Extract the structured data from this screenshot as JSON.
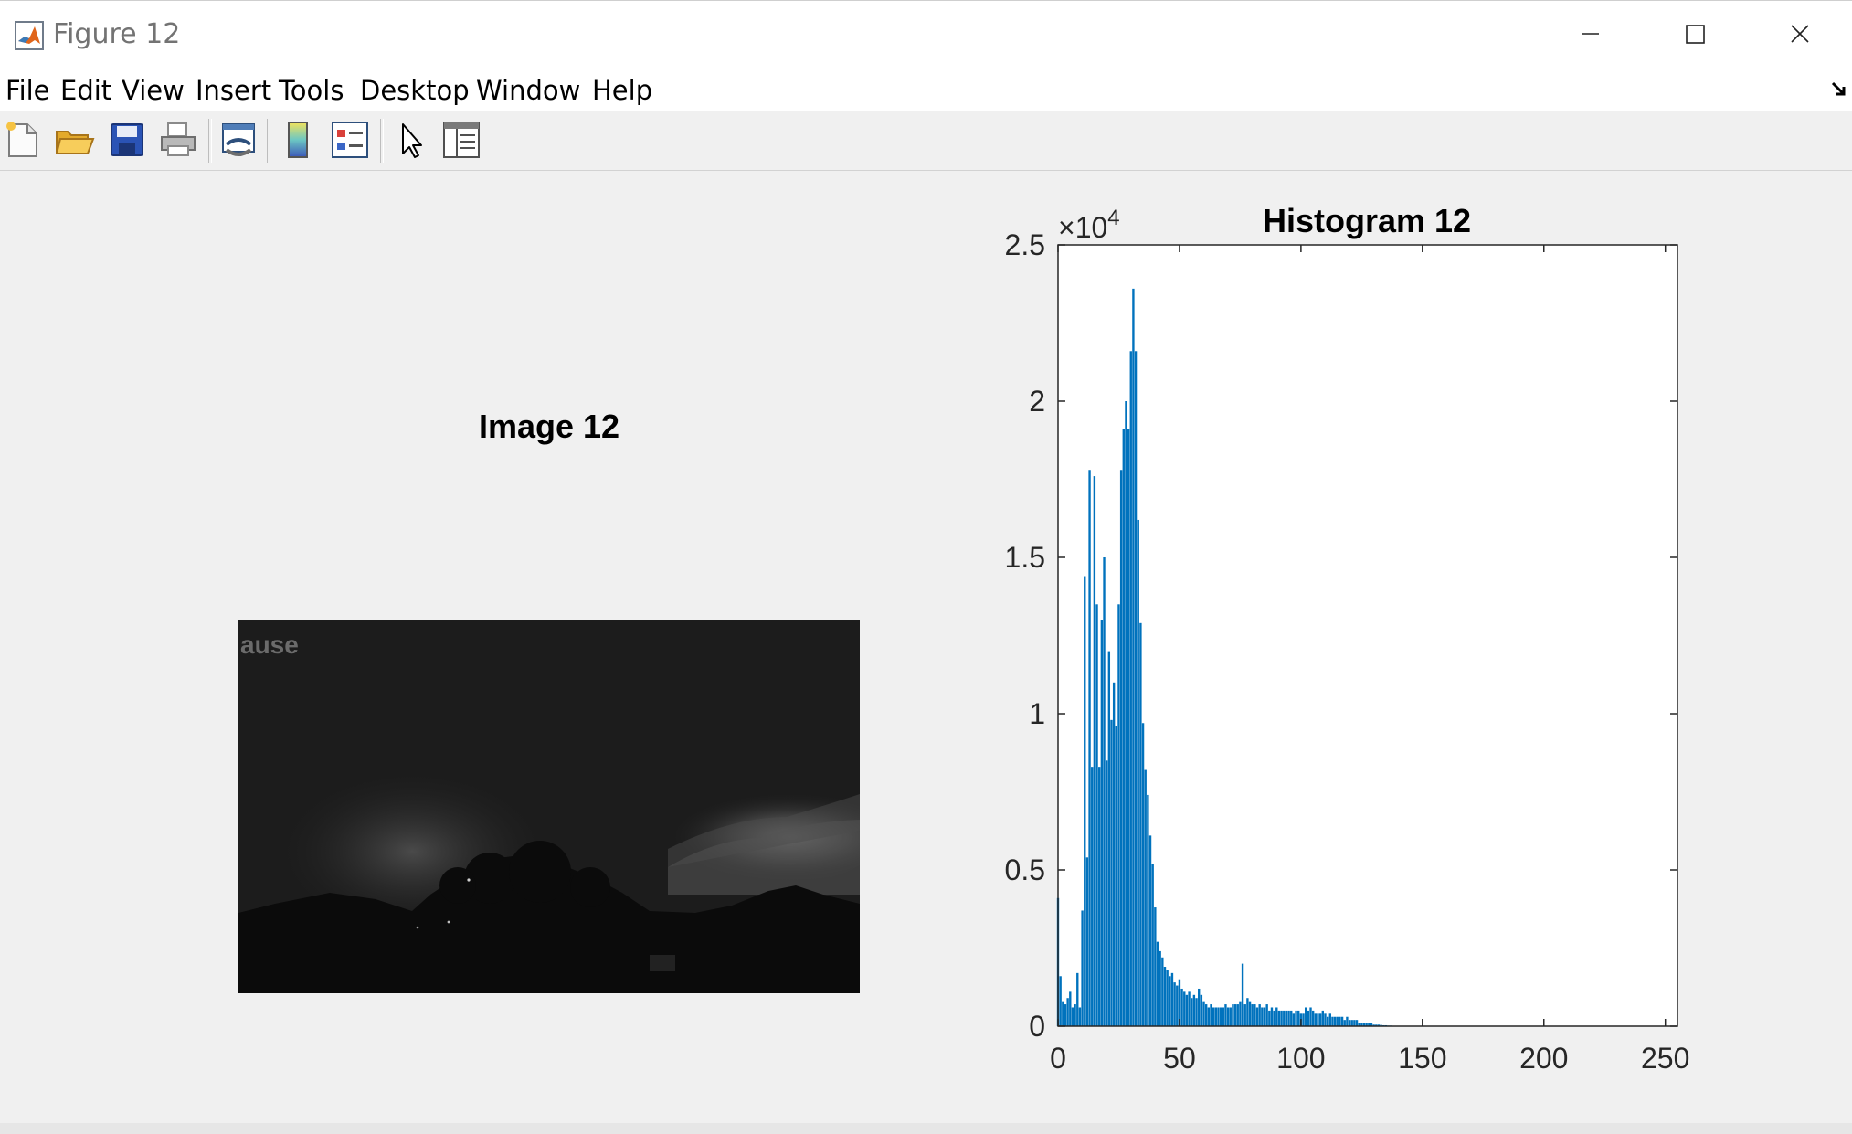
{
  "window": {
    "title": "Figure 12",
    "controls": {
      "minimize": "minimize-icon",
      "maximize": "maximize-icon",
      "close": "close-icon"
    }
  },
  "menu": [
    "File",
    "Edit",
    "View",
    "Insert",
    "Tools",
    "Desktop",
    "Window",
    "Help"
  ],
  "toolbar": {
    "buttons": [
      "new-figure-icon",
      "open-file-icon",
      "save-icon",
      "print-icon",
      "link-plot-icon",
      "insert-colorbar-icon",
      "insert-legend-icon",
      "edit-plot-icon",
      "property-inspector-icon"
    ]
  },
  "image_axes": {
    "title": "Image 12",
    "overlay_text": "ause"
  },
  "chart_data": {
    "type": "bar",
    "title": "Histogram 12",
    "exponent_label": "×10",
    "exponent_power": "4",
    "xlim": [
      0,
      255
    ],
    "ylim": [
      0,
      25000
    ],
    "xticks": [
      "0",
      "50",
      "100",
      "150",
      "200",
      "250"
    ],
    "yticks": [
      "0",
      "0.5",
      "1",
      "1.5",
      "2",
      "2.5"
    ],
    "bar_color": "#0072bd",
    "values": [
      4100,
      1600,
      800,
      700,
      900,
      1100,
      600,
      700,
      1700,
      600,
      3700,
      14400,
      5400,
      17800,
      8300,
      17600,
      13500,
      8300,
      13000,
      15000,
      8500,
      12000,
      9800,
      11000,
      9600,
      13500,
      17800,
      19100,
      20000,
      19100,
      21600,
      23600,
      21600,
      16200,
      12900,
      9700,
      8200,
      7400,
      6100,
      5200,
      3800,
      2700,
      2400,
      2200,
      1900,
      1800,
      1600,
      1700,
      1400,
      1300,
      1500,
      1200,
      1100,
      1000,
      1100,
      900,
      1000,
      900,
      1200,
      1000,
      800,
      700,
      600,
      700,
      600,
      600,
      600,
      600,
      600,
      700,
      600,
      600,
      700,
      700,
      700,
      800,
      2000,
      700,
      900,
      800,
      700,
      700,
      600,
      700,
      600,
      600,
      700,
      500,
      600,
      500,
      600,
      500,
      500,
      500,
      500,
      500,
      500,
      400,
      500,
      500,
      400,
      400,
      600,
      500,
      600,
      500,
      400,
      400,
      400,
      500,
      400,
      300,
      400,
      300,
      300,
      300,
      300,
      300,
      200,
      300,
      200,
      200,
      200,
      200,
      100,
      100,
      100,
      100,
      100,
      100,
      50,
      50,
      50,
      40,
      30,
      30,
      20,
      20,
      10,
      10,
      10,
      5,
      5,
      5,
      0,
      0,
      0,
      0,
      0,
      0,
      0,
      0,
      0,
      0,
      0,
      0,
      0,
      0,
      0,
      0,
      0,
      0,
      0,
      0,
      0,
      0,
      0,
      0,
      0,
      0,
      0,
      0,
      0,
      0,
      0,
      0,
      0,
      0,
      0,
      0,
      0,
      0,
      0,
      0,
      0,
      0,
      0,
      0,
      0,
      0,
      0,
      0,
      0,
      0,
      0,
      0,
      0,
      0,
      0,
      0,
      0,
      0,
      0,
      0,
      0,
      0,
      0,
      0,
      0,
      0,
      0,
      0,
      0,
      0,
      0,
      0,
      0,
      0,
      0,
      0,
      0,
      0,
      0,
      0,
      0,
      0,
      0,
      0,
      0,
      0,
      0,
      0,
      0,
      0,
      0,
      0,
      0,
      0,
      0,
      0,
      0,
      0,
      0,
      0,
      0,
      0,
      0,
      0,
      0,
      0,
      0,
      0,
      0,
      0,
      0
    ]
  }
}
